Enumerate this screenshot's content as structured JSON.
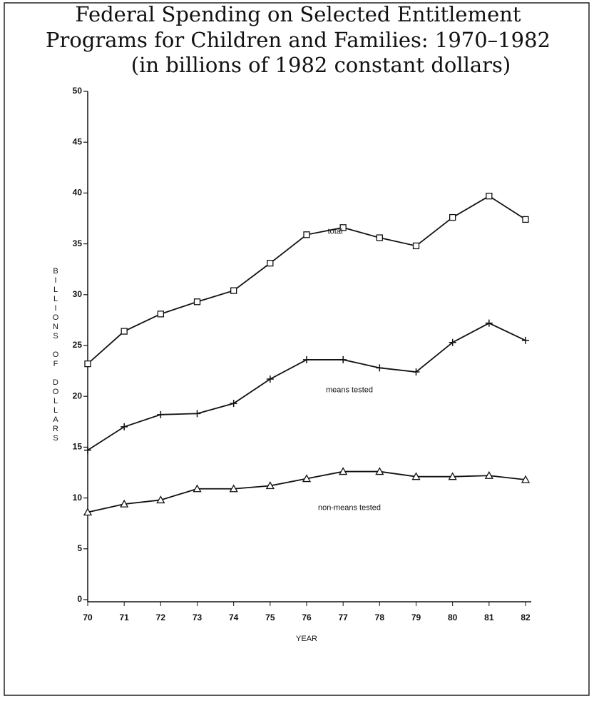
{
  "chart_data": {
    "type": "line",
    "title": [
      "Federal Spending on Selected Entitlement",
      "Programs for Children and Families: 1970–1982",
      "(in billions of 1982 constant dollars)"
    ],
    "y_label": "BILLIONS OF DOLLARS",
    "x_label": "YEAR",
    "categories": [
      "70",
      "71",
      "72",
      "73",
      "74",
      "75",
      "76",
      "77",
      "78",
      "79",
      "80",
      "81",
      "82"
    ],
    "series": [
      {
        "name": "total",
        "color": "#111111",
        "marker": "square",
        "values": [
          23.2,
          26.4,
          28.1,
          29.3,
          30.4,
          33.1,
          35.9,
          36.6,
          35.6,
          34.8,
          37.6,
          39.7,
          37.4
        ]
      },
      {
        "name": "means tested",
        "color": "#111111",
        "marker": "plus",
        "values": [
          14.7,
          17.0,
          18.2,
          18.3,
          19.3,
          21.7,
          23.6,
          23.6,
          22.8,
          22.4,
          25.3,
          27.2,
          25.5
        ]
      },
      {
        "name": "non-means tested",
        "color": "#111111",
        "marker": "triangle",
        "values": [
          8.6,
          9.4,
          9.8,
          10.9,
          10.9,
          11.2,
          11.9,
          12.6,
          12.6,
          12.1,
          12.1,
          12.2,
          11.8
        ]
      }
    ],
    "ylim": [
      0,
      50
    ],
    "yticks": [
      0,
      5,
      10,
      15,
      20,
      25,
      30,
      35,
      40,
      45,
      50
    ],
    "grid": false
  }
}
